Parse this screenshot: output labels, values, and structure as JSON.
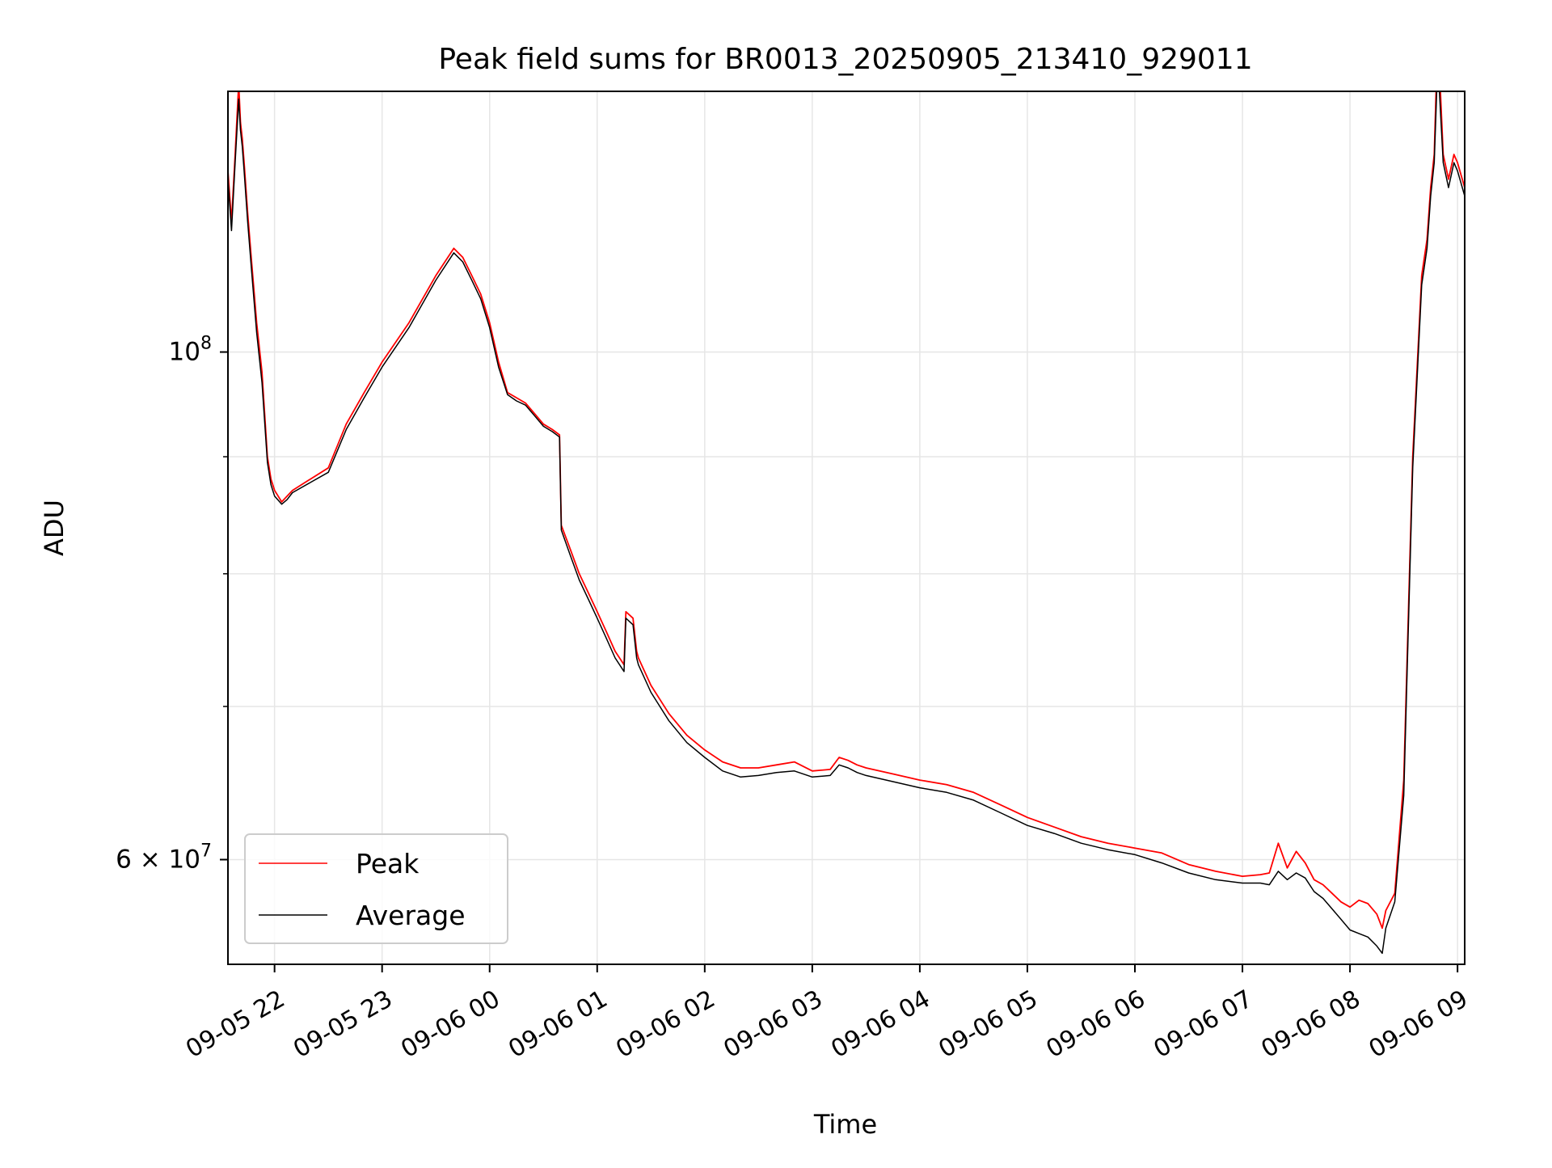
{
  "chart_data": {
    "type": "line",
    "title": "Peak field sums for BR0013_20250905_213410_929011",
    "xlabel": "Time",
    "ylabel": "ADU",
    "y_scale": "log",
    "x_range": [
      "2025-09-05 21:34",
      "2025-09-06 09:04"
    ],
    "y_range": [
      54000000,
      130000000
    ],
    "x_ticks": [
      {
        "t": "2025-09-05 22:00",
        "label": "09-05 22"
      },
      {
        "t": "2025-09-05 23:00",
        "label": "09-05 23"
      },
      {
        "t": "2025-09-06 00:00",
        "label": "09-06 00"
      },
      {
        "t": "2025-09-06 01:00",
        "label": "09-06 01"
      },
      {
        "t": "2025-09-06 02:00",
        "label": "09-06 02"
      },
      {
        "t": "2025-09-06 03:00",
        "label": "09-06 03"
      },
      {
        "t": "2025-09-06 04:00",
        "label": "09-06 04"
      },
      {
        "t": "2025-09-06 05:00",
        "label": "09-06 05"
      },
      {
        "t": "2025-09-06 06:00",
        "label": "09-06 06"
      },
      {
        "t": "2025-09-06 07:00",
        "label": "09-06 07"
      },
      {
        "t": "2025-09-06 08:00",
        "label": "09-06 08"
      },
      {
        "t": "2025-09-06 09:00",
        "label": "09-06 09"
      }
    ],
    "y_major_ticks": [
      {
        "value": 60000000,
        "base": "6 × 10",
        "exp": "7"
      },
      {
        "value": 100000000,
        "base": "10",
        "exp": "8"
      }
    ],
    "y_minor_ticks": [
      70000000,
      80000000,
      90000000
    ],
    "grid": true,
    "legend_position": "lower-left",
    "series": [
      {
        "name": "Peak",
        "color": "#ff0000",
        "x": [
          "2025-09-05 21:34",
          "2025-09-05 21:36",
          "2025-09-05 21:38",
          "2025-09-05 21:40",
          "2025-09-05 21:41",
          "2025-09-05 21:42",
          "2025-09-05 21:43",
          "2025-09-05 21:45",
          "2025-09-05 21:47",
          "2025-09-05 21:50",
          "2025-09-05 21:53",
          "2025-09-05 21:56",
          "2025-09-05 21:58",
          "2025-09-05 22:00",
          "2025-09-05 22:04",
          "2025-09-05 22:07",
          "2025-09-05 22:10",
          "2025-09-05 22:20",
          "2025-09-05 22:30",
          "2025-09-05 22:40",
          "2025-09-05 22:50",
          "2025-09-05 23:00",
          "2025-09-05 23:15",
          "2025-09-05 23:30",
          "2025-09-05 23:40",
          "2025-09-05 23:45",
          "2025-09-05 23:50",
          "2025-09-05 23:55",
          "2025-09-06 00:00",
          "2025-09-06 00:05",
          "2025-09-06 00:10",
          "2025-09-06 00:15",
          "2025-09-06 00:20",
          "2025-09-06 00:25",
          "2025-09-06 00:30",
          "2025-09-06 00:35",
          "2025-09-06 00:39",
          "2025-09-06 00:40",
          "2025-09-06 00:45",
          "2025-09-06 00:50",
          "2025-09-06 00:55",
          "2025-09-06 01:00",
          "2025-09-06 01:05",
          "2025-09-06 01:10",
          "2025-09-06 01:15",
          "2025-09-06 01:16",
          "2025-09-06 01:20",
          "2025-09-06 01:22",
          "2025-09-06 01:23",
          "2025-09-06 01:30",
          "2025-09-06 01:40",
          "2025-09-06 01:50",
          "2025-09-06 02:00",
          "2025-09-06 02:10",
          "2025-09-06 02:20",
          "2025-09-06 02:30",
          "2025-09-06 02:40",
          "2025-09-06 02:50",
          "2025-09-06 03:00",
          "2025-09-06 03:10",
          "2025-09-06 03:15",
          "2025-09-06 03:20",
          "2025-09-06 03:25",
          "2025-09-06 03:30",
          "2025-09-06 03:45",
          "2025-09-06 04:00",
          "2025-09-06 04:15",
          "2025-09-06 04:30",
          "2025-09-06 04:45",
          "2025-09-06 05:00",
          "2025-09-06 05:15",
          "2025-09-06 05:30",
          "2025-09-06 05:45",
          "2025-09-06 06:00",
          "2025-09-06 06:15",
          "2025-09-06 06:30",
          "2025-09-06 06:45",
          "2025-09-06 07:00",
          "2025-09-06 07:10",
          "2025-09-06 07:15",
          "2025-09-06 07:20",
          "2025-09-06 07:25",
          "2025-09-06 07:30",
          "2025-09-06 07:35",
          "2025-09-06 07:40",
          "2025-09-06 07:45",
          "2025-09-06 07:50",
          "2025-09-06 07:55",
          "2025-09-06 08:00",
          "2025-09-06 08:05",
          "2025-09-06 08:10",
          "2025-09-06 08:15",
          "2025-09-06 08:18",
          "2025-09-06 08:20",
          "2025-09-06 08:25",
          "2025-09-06 08:30",
          "2025-09-06 08:35",
          "2025-09-06 08:40",
          "2025-09-06 08:43",
          "2025-09-06 08:45",
          "2025-09-06 08:47",
          "2025-09-06 08:49",
          "2025-09-06 08:52",
          "2025-09-06 08:55",
          "2025-09-06 08:58",
          "2025-09-06 09:00",
          "2025-09-06 09:04"
        ],
        "y": [
          120000000,
          114000000,
          122000000,
          131000000,
          126000000,
          124000000,
          121000000,
          115000000,
          110000000,
          103000000,
          98000000,
          90000000,
          88000000,
          87000000,
          86000000,
          86500000,
          87000000,
          88000000,
          89000000,
          93000000,
          96000000,
          99000000,
          103000000,
          108000000,
          111000000,
          110000000,
          108000000,
          106000000,
          103000000,
          99000000,
          96000000,
          95500000,
          95000000,
          94000000,
          93000000,
          92500000,
          92000000,
          84000000,
          82000000,
          80000000,
          78500000,
          77000000,
          75500000,
          74000000,
          73000000,
          77000000,
          76500000,
          74000000,
          73500000,
          71500000,
          69500000,
          68000000,
          67000000,
          66200000,
          65800000,
          65800000,
          66000000,
          66200000,
          65600000,
          65700000,
          66500000,
          66300000,
          66000000,
          65800000,
          65400000,
          65000000,
          64700000,
          64200000,
          63400000,
          62600000,
          62000000,
          61400000,
          61000000,
          60700000,
          60400000,
          59700000,
          59300000,
          59000000,
          59100000,
          59200000,
          61000000,
          59500000,
          60500000,
          59800000,
          58800000,
          58500000,
          58000000,
          57500000,
          57200000,
          57600000,
          57400000,
          56800000,
          56000000,
          57000000,
          58000000,
          65000000,
          90000000,
          108000000,
          112000000,
          118000000,
          122000000,
          138000000,
          122000000,
          119000000,
          122000000,
          121000000,
          118000000
        ]
      },
      {
        "name": "Average",
        "color": "#000000",
        "x": [
          "2025-09-05 21:34",
          "2025-09-05 21:36",
          "2025-09-05 21:38",
          "2025-09-05 21:40",
          "2025-09-05 21:41",
          "2025-09-05 21:42",
          "2025-09-05 21:43",
          "2025-09-05 21:45",
          "2025-09-05 21:47",
          "2025-09-05 21:50",
          "2025-09-05 21:53",
          "2025-09-05 21:56",
          "2025-09-05 21:58",
          "2025-09-05 22:00",
          "2025-09-05 22:04",
          "2025-09-05 22:07",
          "2025-09-05 22:10",
          "2025-09-05 22:20",
          "2025-09-05 22:30",
          "2025-09-05 22:40",
          "2025-09-05 22:50",
          "2025-09-05 23:00",
          "2025-09-05 23:15",
          "2025-09-05 23:30",
          "2025-09-05 23:40",
          "2025-09-05 23:45",
          "2025-09-05 23:50",
          "2025-09-05 23:55",
          "2025-09-06 00:00",
          "2025-09-06 00:05",
          "2025-09-06 00:10",
          "2025-09-06 00:15",
          "2025-09-06 00:20",
          "2025-09-06 00:25",
          "2025-09-06 00:30",
          "2025-09-06 00:35",
          "2025-09-06 00:39",
          "2025-09-06 00:40",
          "2025-09-06 00:45",
          "2025-09-06 00:50",
          "2025-09-06 00:55",
          "2025-09-06 01:00",
          "2025-09-06 01:05",
          "2025-09-06 01:10",
          "2025-09-06 01:15",
          "2025-09-06 01:16",
          "2025-09-06 01:20",
          "2025-09-06 01:22",
          "2025-09-06 01:23",
          "2025-09-06 01:30",
          "2025-09-06 01:40",
          "2025-09-06 01:50",
          "2025-09-06 02:00",
          "2025-09-06 02:10",
          "2025-09-06 02:20",
          "2025-09-06 02:30",
          "2025-09-06 02:40",
          "2025-09-06 02:50",
          "2025-09-06 03:00",
          "2025-09-06 03:10",
          "2025-09-06 03:15",
          "2025-09-06 03:20",
          "2025-09-06 03:25",
          "2025-09-06 03:30",
          "2025-09-06 03:45",
          "2025-09-06 04:00",
          "2025-09-06 04:15",
          "2025-09-06 04:30",
          "2025-09-06 04:45",
          "2025-09-06 05:00",
          "2025-09-06 05:15",
          "2025-09-06 05:30",
          "2025-09-06 05:45",
          "2025-09-06 06:00",
          "2025-09-06 06:15",
          "2025-09-06 06:30",
          "2025-09-06 06:45",
          "2025-09-06 07:00",
          "2025-09-06 07:10",
          "2025-09-06 07:15",
          "2025-09-06 07:20",
          "2025-09-06 07:25",
          "2025-09-06 07:30",
          "2025-09-06 07:35",
          "2025-09-06 07:40",
          "2025-09-06 07:45",
          "2025-09-06 07:50",
          "2025-09-06 07:55",
          "2025-09-06 08:00",
          "2025-09-06 08:05",
          "2025-09-06 08:10",
          "2025-09-06 08:15",
          "2025-09-06 08:18",
          "2025-09-06 08:20",
          "2025-09-06 08:25",
          "2025-09-06 08:30",
          "2025-09-06 08:35",
          "2025-09-06 08:40",
          "2025-09-06 08:43",
          "2025-09-06 08:45",
          "2025-09-06 08:47",
          "2025-09-06 08:49",
          "2025-09-06 08:52",
          "2025-09-06 08:55",
          "2025-09-06 08:58",
          "2025-09-06 09:00",
          "2025-09-06 09:04"
        ],
        "y": [
          119000000,
          113000000,
          121000000,
          129000000,
          125000000,
          123000000,
          120000000,
          114000000,
          109000000,
          102000000,
          97000000,
          89500000,
          87500000,
          86500000,
          85800000,
          86200000,
          86800000,
          87700000,
          88600000,
          92500000,
          95500000,
          98500000,
          102500000,
          107500000,
          110500000,
          109500000,
          107500000,
          105500000,
          102500000,
          98500000,
          95800000,
          95200000,
          94800000,
          93800000,
          92800000,
          92300000,
          91800000,
          83600000,
          81500000,
          79500000,
          78000000,
          76500000,
          75000000,
          73500000,
          72500000,
          76500000,
          76000000,
          73500000,
          73000000,
          71000000,
          69000000,
          67500000,
          66500000,
          65600000,
          65200000,
          65300000,
          65500000,
          65600000,
          65200000,
          65300000,
          66000000,
          65800000,
          65500000,
          65300000,
          64900000,
          64500000,
          64200000,
          63700000,
          62900000,
          62100000,
          61600000,
          61000000,
          60600000,
          60300000,
          59800000,
          59200000,
          58800000,
          58600000,
          58600000,
          58500000,
          59300000,
          58800000,
          59200000,
          58900000,
          58100000,
          57700000,
          57100000,
          56500000,
          55900000,
          55700000,
          55500000,
          55000000,
          54600000,
          56000000,
          57500000,
          64000000,
          89000000,
          107000000,
          111000000,
          117000000,
          121000000,
          134000000,
          121000000,
          118000000,
          121000000,
          120000000,
          117000000
        ]
      }
    ]
  }
}
